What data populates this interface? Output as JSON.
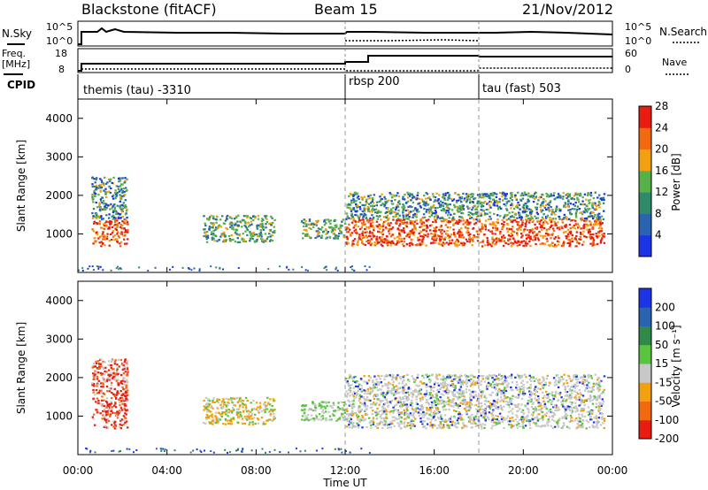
{
  "header": {
    "station": "Blackstone (fitACF)",
    "beam": "Beam 15",
    "date": "21/Nov/2012"
  },
  "status_panel": {
    "left_top_label": "N.Sky",
    "left_top_ticks": [
      "10^5",
      "10^0"
    ],
    "right_top_label": "N.Search",
    "right_top_ticks": [
      "10^5",
      "10^0"
    ],
    "freq_label_line1": "Freq.",
    "freq_label_line2": "[MHz]",
    "freq_ticks": [
      "18",
      "8"
    ],
    "nave_label": "Nave",
    "nave_ticks": [
      "60",
      "0"
    ],
    "cpid_label": "CPID",
    "cpid_segments": [
      {
        "start_hour": 0,
        "label": "themis (tau) -3310"
      },
      {
        "start_hour": 12.0,
        "label": "rbsp 200"
      },
      {
        "start_hour": 18.0,
        "label": "tau (fast) 503"
      }
    ]
  },
  "chart_data": [
    {
      "type": "heatmap",
      "name": "power",
      "ylabel": "Slant Range [km]",
      "xlabel": "",
      "xlim_hours": [
        0,
        24
      ],
      "ylim": [
        0,
        4500
      ],
      "y_ticks": [
        "1000",
        "2000",
        "3000",
        "4000"
      ],
      "colorbar_label": "Power [dB]",
      "colorbar_ticks": [
        "4",
        "8",
        "12",
        "16",
        "20",
        "24",
        "28"
      ],
      "colors": [
        "#1b34e6",
        "#2a64b0",
        "#2f8a6a",
        "#58b04a",
        "#f2a010",
        "#f26a10",
        "#e81c10"
      ],
      "echo_regions": [
        {
          "hour_range": [
            0.6,
            2.2
          ],
          "range_km": [
            700,
            2500
          ],
          "level": 5
        },
        {
          "hour_range": [
            5.6,
            8.8
          ],
          "range_km": [
            800,
            1500
          ],
          "level": 3
        },
        {
          "hour_range": [
            10.0,
            12.0
          ],
          "range_km": [
            900,
            1400
          ],
          "level": 2
        },
        {
          "hour_range": [
            12.0,
            23.6
          ],
          "range_km": [
            700,
            2100
          ],
          "level": 5
        }
      ]
    },
    {
      "type": "heatmap",
      "name": "velocity",
      "ylabel": "Slant Range [km]",
      "xlabel": "Time UT",
      "xlim_hours": [
        0,
        24
      ],
      "ylim": [
        0,
        4500
      ],
      "y_ticks": [
        "1000",
        "2000",
        "3000",
        "4000"
      ],
      "x_ticks": [
        "00:00",
        "04:00",
        "08:00",
        "12:00",
        "16:00",
        "20:00",
        "00:00"
      ],
      "colorbar_label": "Velocity [m s⁻¹]",
      "colorbar_ticks": [
        "200",
        "100",
        "50",
        "15",
        "-15",
        "-50",
        "-100",
        "-200"
      ],
      "colors": [
        "#1b34e6",
        "#2a64b0",
        "#2f8a4a",
        "#58c440",
        "#c8c8c8",
        "#f2a010",
        "#f26a10",
        "#e81c10"
      ],
      "echo_regions": [
        {
          "hour_range": [
            0.6,
            2.2
          ],
          "range_km": [
            700,
            2500
          ],
          "class": "negative"
        },
        {
          "hour_range": [
            5.6,
            8.8
          ],
          "range_km": [
            800,
            1500
          ],
          "class": "mixed"
        },
        {
          "hour_range": [
            10.0,
            12.0
          ],
          "range_km": [
            900,
            1400
          ],
          "class": "positive-low"
        },
        {
          "hour_range": [
            12.0,
            23.6
          ],
          "range_km": [
            700,
            2100
          ],
          "class": "ground-scatter"
        }
      ]
    }
  ]
}
